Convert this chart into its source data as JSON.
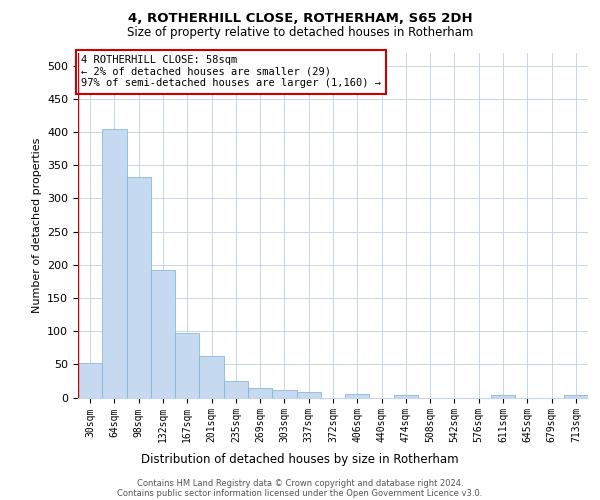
{
  "title": "4, ROTHERHILL CLOSE, ROTHERHAM, S65 2DH",
  "subtitle": "Size of property relative to detached houses in Rotherham",
  "xlabel": "Distribution of detached houses by size in Rotherham",
  "ylabel": "Number of detached properties",
  "bar_color": "#c5d9f1",
  "bar_edge_color": "#7bafd4",
  "background_color": "#ffffff",
  "grid_color": "#c8d4e8",
  "annotation_box_color": "#cc0000",
  "categories": [
    "30sqm",
    "64sqm",
    "98sqm",
    "132sqm",
    "167sqm",
    "201sqm",
    "235sqm",
    "269sqm",
    "303sqm",
    "337sqm",
    "372sqm",
    "406sqm",
    "440sqm",
    "474sqm",
    "508sqm",
    "542sqm",
    "576sqm",
    "611sqm",
    "645sqm",
    "679sqm",
    "713sqm"
  ],
  "values": [
    52,
    405,
    332,
    192,
    97,
    63,
    25,
    14,
    11,
    9,
    0,
    6,
    0,
    4,
    0,
    0,
    0,
    4,
    0,
    0,
    4
  ],
  "ylim": [
    0,
    520
  ],
  "yticks": [
    0,
    50,
    100,
    150,
    200,
    250,
    300,
    350,
    400,
    450,
    500
  ],
  "annotation_text": "4 ROTHERHILL CLOSE: 58sqm\n← 2% of detached houses are smaller (29)\n97% of semi-detached houses are larger (1,160) →",
  "footer_line1": "Contains HM Land Registry data © Crown copyright and database right 2024.",
  "footer_line2": "Contains public sector information licensed under the Open Government Licence v3.0."
}
